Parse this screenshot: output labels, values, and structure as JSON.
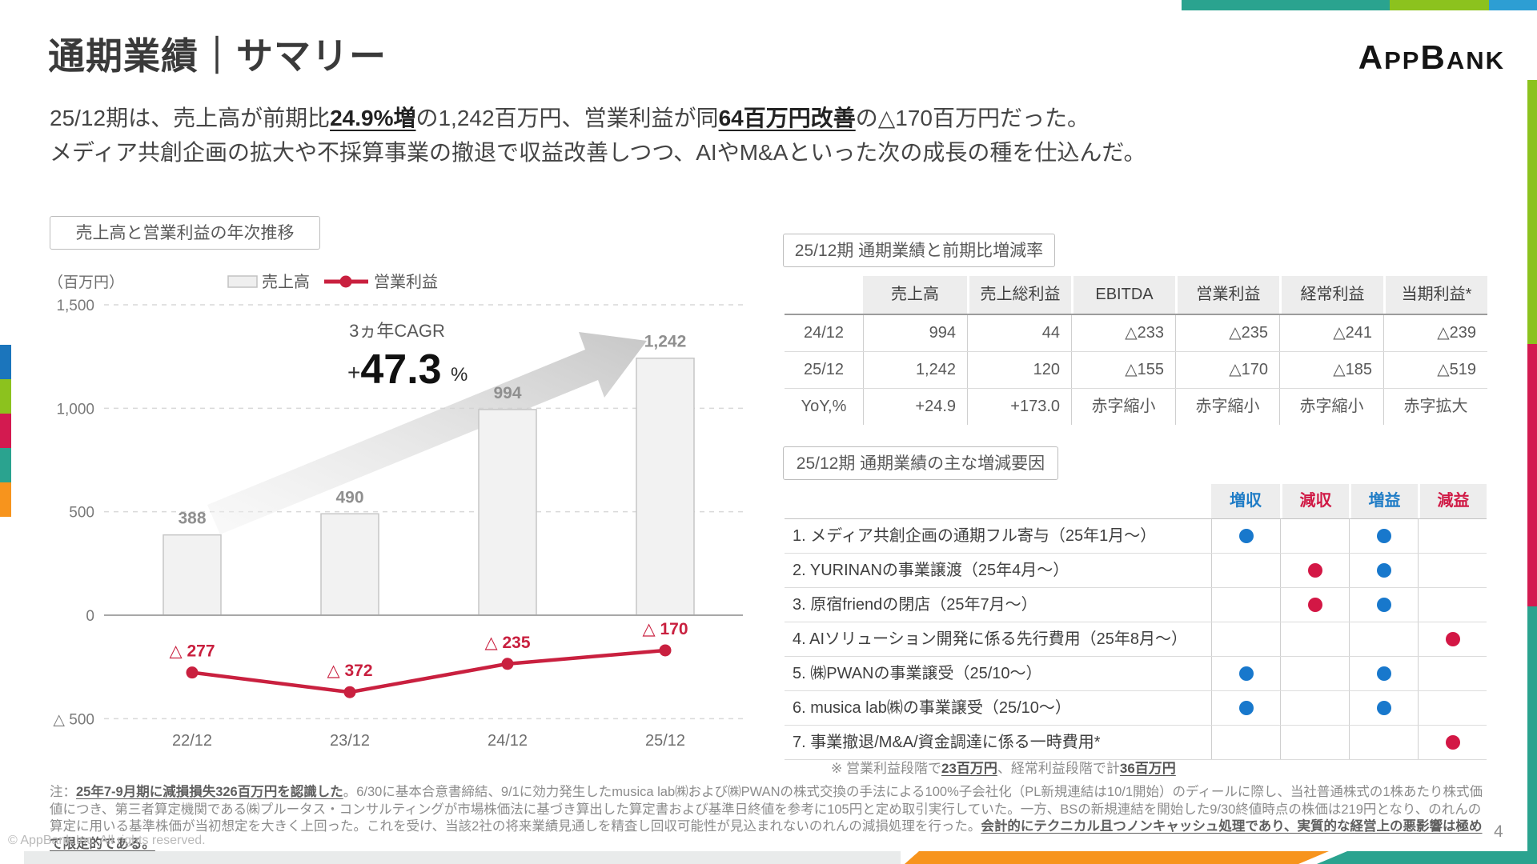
{
  "header": {
    "title": "通期業績｜サマリー",
    "logo": {
      "p1": "A",
      "p2": "PP",
      "p3": "B",
      "p4": "ANK"
    }
  },
  "summary": {
    "line1_pre": "25/12期は、売上高が前期比",
    "line1_hl1": "24.9%増",
    "line1_mid": "の1,242百万円、営業利益が同",
    "line1_hl2": "64百万円改善",
    "line1_post": "の△170百万円だった。",
    "line2": "メディア共創企画の拡大や不採算事業の撤退で収益改善しつつ、AIやM&Aといった次の成長の種を仕込んだ。"
  },
  "chart_box_title": "売上高と営業利益の年次推移",
  "chart_data": {
    "type": "bar+line",
    "title": "売上高と営業利益の年次推移",
    "unit_label": "（百万円）",
    "categories": [
      "22/12",
      "23/12",
      "24/12",
      "25/12"
    ],
    "series": [
      {
        "name": "売上高",
        "type": "bar",
        "values": [
          388,
          490,
          994,
          1242
        ]
      },
      {
        "name": "営業利益",
        "type": "line",
        "values": [
          -277,
          -372,
          -235,
          -170
        ]
      }
    ],
    "bar_labels": [
      "388",
      "490",
      "994",
      "1,242"
    ],
    "line_labels": [
      "△ 277",
      "△ 372",
      "△ 235",
      "△ 170"
    ],
    "yticks": [
      {
        "label": "1,500",
        "value": 1500
      },
      {
        "label": "1,000",
        "value": 1000
      },
      {
        "label": "500",
        "value": 500
      },
      {
        "label": "0",
        "value": 0
      },
      {
        "label": "△ 500",
        "value": -500
      }
    ],
    "ylim": [
      -650,
      1500
    ],
    "grid": "horizontal-dashed",
    "legend_position": "top",
    "cagr_label": "3ヵ年CAGR",
    "cagr_plus": "+",
    "cagr_value": "47.3",
    "cagr_pct": "%"
  },
  "table1": {
    "box_title": "25/12期 通期業績と前期比増減率",
    "columns": [
      "売上高",
      "売上総利益",
      "EBITDA",
      "営業利益",
      "経常利益",
      "当期利益*"
    ],
    "rows": [
      {
        "label": "24/12",
        "values": [
          "994",
          "44",
          "△233",
          "△235",
          "△241",
          "△239"
        ]
      },
      {
        "label": "25/12",
        "values": [
          "1,242",
          "120",
          "△155",
          "△170",
          "△185",
          "△519"
        ]
      },
      {
        "label": "YoY,%",
        "values": [
          "+24.9",
          "+173.0",
          "赤字縮小",
          "赤字縮小",
          "赤字縮小",
          "赤字拡大"
        ]
      }
    ]
  },
  "factors": {
    "box_title": "25/12期 通期業績の主な増減要因",
    "columns": [
      {
        "label": "増収",
        "color": "blue"
      },
      {
        "label": "減収",
        "color": "red"
      },
      {
        "label": "増益",
        "color": "blue"
      },
      {
        "label": "減益",
        "color": "red"
      }
    ],
    "rows": [
      {
        "label": "1. メディア共創企画の通期フル寄与（25年1月～）",
        "dots": [
          "blue",
          null,
          "blue",
          null
        ]
      },
      {
        "label": "2. YURINANの事業譲渡（25年4月～）",
        "dots": [
          null,
          "red",
          "blue",
          null
        ]
      },
      {
        "label": "3. 原宿friendの閉店（25年7月～）",
        "dots": [
          null,
          "red",
          "blue",
          null
        ]
      },
      {
        "label": "4. AIソリューション開発に係る先行費用（25年8月～）",
        "dots": [
          null,
          null,
          null,
          "red"
        ]
      },
      {
        "label": "5. ㈱PWANの事業譲受（25/10～）",
        "dots": [
          "blue",
          null,
          "blue",
          null
        ]
      },
      {
        "label": "6. musica lab㈱の事業譲受（25/10～）",
        "dots": [
          "blue",
          null,
          "blue",
          null
        ]
      },
      {
        "label": "7. 事業撤退/M&A/資金調達に係る一時費用*",
        "dots": [
          null,
          null,
          null,
          "red"
        ]
      }
    ],
    "footnote_pre": "※ 営業利益段階で",
    "footnote_b1": "23百万円",
    "footnote_mid": "、経常利益段階で計",
    "footnote_b2": "36百万円"
  },
  "notes": {
    "prefix": "注：",
    "u1": "25年7-9月期に減損損失326百万円を認識した",
    "t1": "。6/30に基本合意書締結、9/1に効力発生したmusica lab㈱および㈱PWANの株式交換の手法による100%子会社化（PL新規連結は10/1開始）のディールに際し、当社普通株式の1株あたり株式価値につき、第三者算定機関である㈱プルータス・コンサルティングが市場株価法に基づき算出した算定書および基準日終値を参考に105円と定め取引実行していた。一方、BSの新規連結を開始した9/30終値時点の株価は219円となり、のれんの算定に用いる基準株価が当初想定を大きく上回った。これを受け、当該2社の将来業績見通しを精査し回収可能性が見込まれないのれんの減損処理を行った。",
    "u2": "会計的にテクニカル且つノンキャッシュ処理であり、実質的な経営上の悪影響は極めて限定的である。"
  },
  "footer": {
    "copyright": "© AppBank Inc. All rights reserved.",
    "page": "4"
  },
  "colors": {
    "crimson": "#c9203f",
    "dot_blue": "#1878cc",
    "dot_red": "#d31745",
    "bar_fill": "#f2f2f2",
    "bar_stroke": "#c6c6c6",
    "accent_teal": "#2aa38f",
    "accent_green": "#8cc21e",
    "accent_blue": "#1b75bc",
    "accent_orange": "#f7941d",
    "accent_crimson": "#d31a50"
  }
}
